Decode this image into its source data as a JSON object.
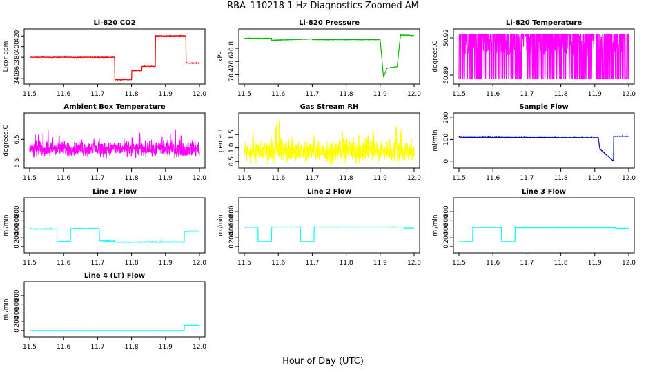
{
  "figure": {
    "title": "RBA_110218  1 Hz Diagnostics Zoomed AM",
    "xlabel": "Hour of Day (UTC)"
  },
  "chart_data": [
    {
      "type": "line",
      "title": "Li-820 CO2",
      "ylabel": "Licor ppm",
      "color": "#ff0000",
      "xlim": [
        11.5,
        12.0
      ],
      "ylim": [
        335,
        428
      ],
      "yticks": [
        340,
        360,
        380,
        400,
        420
      ],
      "xticks": [
        11.5,
        11.6,
        11.7,
        11.8,
        11.9,
        12.0
      ],
      "series": [
        {
          "name": "CO2",
          "noise": 0.6,
          "x": [
            11.5,
            11.75,
            11.75,
            11.8,
            11.8,
            11.83,
            11.83,
            11.87,
            11.87,
            11.96,
            11.96,
            12.0
          ],
          "y": [
            380,
            380,
            338,
            338,
            355,
            355,
            363,
            363,
            420,
            420,
            369,
            369
          ]
        }
      ]
    },
    {
      "type": "line",
      "title": "Li-820 Pressure",
      "ylabel": "kPa",
      "color": "#00bb00",
      "xlim": [
        11.5,
        12.0
      ],
      "ylim": [
        70.3,
        71.05
      ],
      "yticks": [
        70.4,
        70.6,
        70.8
      ],
      "xticks": [
        11.5,
        11.6,
        11.7,
        11.8,
        11.9,
        12.0
      ],
      "series": [
        {
          "name": "Pressure",
          "noise": 0.004,
          "x": [
            11.5,
            11.58,
            11.58,
            11.7,
            11.7,
            11.78,
            11.78,
            11.9,
            11.9,
            11.91,
            11.91,
            11.92,
            11.92,
            11.95,
            11.95,
            11.96,
            11.96,
            12.0
          ],
          "y": [
            70.95,
            70.95,
            70.92,
            70.94,
            70.93,
            70.93,
            70.93,
            70.93,
            70.93,
            70.36,
            70.36,
            70.5,
            70.5,
            70.52,
            70.52,
            71.0,
            71.0,
            70.99
          ]
        }
      ]
    },
    {
      "type": "line",
      "title": "Li-820 Temperature",
      "ylabel": "degrees.C",
      "color": "#ff00ff",
      "xlim": [
        11.5,
        12.0
      ],
      "ylim": [
        50.885,
        50.925
      ],
      "yticks": [
        50.89,
        50.92
      ],
      "xticks": [
        11.5,
        11.6,
        11.7,
        11.8,
        11.9,
        12.0
      ],
      "series": [
        {
          "name": "Temperature",
          "pattern": "quantized",
          "x": [
            11.5,
            12.0
          ],
          "y": [
            50.887,
            50.923
          ]
        }
      ]
    },
    {
      "type": "line",
      "title": "Ambient Box Temperature",
      "ylabel": "degrees.C",
      "color": "#ff00ff",
      "xlim": [
        11.5,
        12.0
      ],
      "ylim": [
        5.4,
        7.5
      ],
      "yticks": [
        5.5,
        6.5
      ],
      "xticks": [
        11.5,
        11.6,
        11.7,
        11.8,
        11.9,
        12.0
      ],
      "series": [
        {
          "name": "Box Temperature",
          "noise": 0.25,
          "x": [
            11.5,
            12.0
          ],
          "y": [
            6.1,
            6.1
          ]
        }
      ]
    },
    {
      "type": "line",
      "title": "Gas Stream RH",
      "ylabel": "percent",
      "color": "#ffff00",
      "xlim": [
        11.5,
        12.0
      ],
      "ylim": [
        0.35,
        2.2
      ],
      "yticks": [
        0.5,
        1.0,
        1.5
      ],
      "xticks": [
        11.5,
        11.6,
        11.7,
        11.8,
        11.9,
        12.0
      ],
      "series": [
        {
          "name": "RH",
          "noise": 0.35,
          "x": [
            11.5,
            12.0
          ],
          "y": [
            0.9,
            0.9
          ]
        }
      ]
    },
    {
      "type": "line",
      "title": "Sample Flow",
      "ylabel": "ml/min",
      "color": "#0000cc",
      "xlim": [
        11.5,
        12.0
      ],
      "ylim": [
        -20,
        210
      ],
      "yticks": [
        0,
        100,
        200
      ],
      "xticks": [
        11.5,
        11.6,
        11.7,
        11.8,
        11.9,
        12.0
      ],
      "series": [
        {
          "name": "Sample Flow",
          "noise": 1.2,
          "x": [
            11.5,
            11.91,
            11.91,
            11.915,
            11.915,
            11.955,
            11.955,
            12.0
          ],
          "y": [
            110,
            108,
            108,
            55,
            55,
            0,
            115,
            115
          ]
        }
      ]
    },
    {
      "type": "line",
      "title": "Line 1 Flow",
      "ylabel": "ml/min",
      "color": "#00ffff",
      "xlim": [
        11.5,
        12.0
      ],
      "ylim": [
        -80,
        1050
      ],
      "yticks": [
        0,
        200,
        400,
        600,
        800
      ],
      "xticks": [
        11.5,
        11.6,
        11.7,
        11.8,
        11.9,
        12.0
      ],
      "series": [
        {
          "name": "Line 1",
          "noise": 8,
          "x": [
            11.5,
            11.58,
            11.58,
            11.62,
            11.62,
            11.705,
            11.705,
            11.75,
            11.75,
            11.955,
            11.955,
            12.0
          ],
          "y": [
            400,
            400,
            110,
            110,
            410,
            410,
            130,
            120,
            100,
            100,
            350,
            350
          ]
        }
      ]
    },
    {
      "type": "line",
      "title": "Line 2 Flow",
      "ylabel": "ml/min",
      "color": "#00ffff",
      "xlim": [
        11.5,
        12.0
      ],
      "ylim": [
        -80,
        1050
      ],
      "yticks": [
        0,
        200,
        400,
        600,
        800
      ],
      "xticks": [
        11.5,
        11.6,
        11.7,
        11.8,
        11.9,
        12.0
      ],
      "series": [
        {
          "name": "Line 2",
          "noise": 3,
          "x": [
            11.5,
            11.54,
            11.54,
            11.58,
            11.58,
            11.665,
            11.665,
            11.705,
            11.705,
            11.97,
            11.97,
            12.0
          ],
          "y": [
            440,
            440,
            110,
            110,
            445,
            445,
            110,
            110,
            445,
            445,
            420,
            420
          ]
        }
      ]
    },
    {
      "type": "line",
      "title": "Line 3 Flow",
      "ylabel": "ml/min",
      "color": "#00ffff",
      "xlim": [
        11.5,
        12.0
      ],
      "ylim": [
        -80,
        1050
      ],
      "yticks": [
        0,
        200,
        400,
        600,
        800
      ],
      "xticks": [
        11.5,
        11.6,
        11.7,
        11.8,
        11.9,
        12.0
      ],
      "series": [
        {
          "name": "Line 3",
          "noise": 3,
          "x": [
            11.5,
            11.54,
            11.54,
            11.625,
            11.625,
            11.665,
            11.665,
            11.96,
            11.96,
            12.0
          ],
          "y": [
            110,
            110,
            435,
            435,
            110,
            110,
            430,
            430,
            415,
            415
          ]
        }
      ]
    },
    {
      "type": "line",
      "title": "Line 4 (LT) Flow",
      "ylabel": "ml/min",
      "color": "#00ffff",
      "xlim": [
        11.5,
        12.0
      ],
      "ylim": [
        -80,
        1050
      ],
      "yticks": [
        0,
        200,
        400,
        600,
        800
      ],
      "xticks": [
        11.5,
        11.6,
        11.7,
        11.8,
        11.9,
        12.0
      ],
      "series": [
        {
          "name": "Line 4",
          "noise": 1,
          "x": [
            11.5,
            11.955,
            11.955,
            12.0
          ],
          "y": [
            0,
            0,
            120,
            120
          ]
        }
      ]
    }
  ]
}
